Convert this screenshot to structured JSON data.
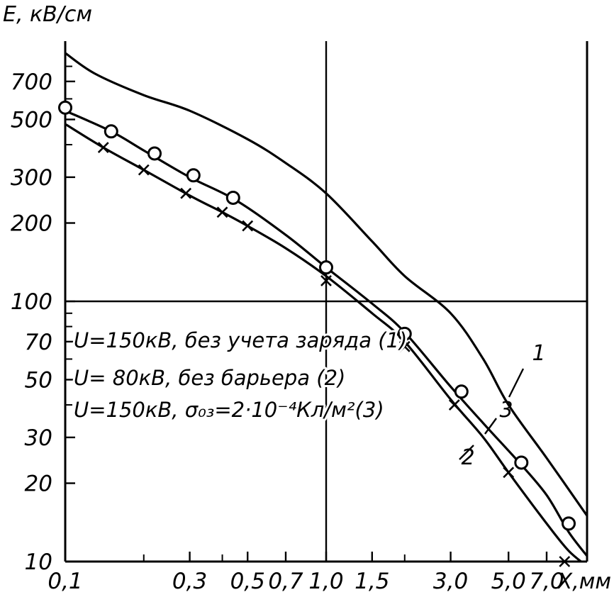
{
  "chart_data": {
    "type": "line",
    "ylabel": "E, кВ/см",
    "xlabel": "X,мм",
    "x_scale": "log",
    "y_scale": "log",
    "xlim": [
      0.1,
      10
    ],
    "ylim": [
      10,
      1000
    ],
    "x_ticks": [
      {
        "value": 0.1,
        "label": "0,1"
      },
      {
        "value": 0.3,
        "label": "0,3"
      },
      {
        "value": 0.5,
        "label": "0,5"
      },
      {
        "value": 0.7,
        "label": "0,7"
      },
      {
        "value": 1.0,
        "label": "1,0"
      },
      {
        "value": 1.5,
        "label": "1,5"
      },
      {
        "value": 3.0,
        "label": "3,0"
      },
      {
        "value": 5.0,
        "label": "5,0"
      },
      {
        "value": 7.0,
        "label": "7,0"
      }
    ],
    "x_minor_ticks": [
      0.2,
      0.4,
      2.0
    ],
    "y_ticks": [
      {
        "value": 10,
        "label": "10"
      },
      {
        "value": 20,
        "label": "20"
      },
      {
        "value": 30,
        "label": "30"
      },
      {
        "value": 50,
        "label": "50"
      },
      {
        "value": 70,
        "label": "70"
      },
      {
        "value": 100,
        "label": "100"
      },
      {
        "value": 200,
        "label": "200"
      },
      {
        "value": 300,
        "label": "300"
      },
      {
        "value": 500,
        "label": "500"
      },
      {
        "value": 700,
        "label": "700"
      }
    ],
    "y_minor_ticks": [
      40,
      60,
      80,
      90,
      400,
      600,
      800
    ],
    "grid_lines": {
      "x": [
        1.0
      ],
      "y": [
        100
      ]
    },
    "series": [
      {
        "id": "1",
        "marker": "none",
        "x": [
          0.1,
          0.13,
          0.2,
          0.3,
          0.5,
          0.7,
          1.0,
          1.5,
          2.0,
          3.0,
          4.0,
          5.0,
          7.0,
          10.0
        ],
        "y": [
          900,
          750,
          620,
          540,
          420,
          340,
          260,
          170,
          125,
          90,
          60,
          40,
          25,
          15
        ]
      },
      {
        "id": "2",
        "marker": "x",
        "x": [
          0.1,
          0.14,
          0.2,
          0.3,
          0.4,
          0.5,
          0.7,
          1.0,
          1.5,
          2.0,
          3.0,
          4.0,
          5.0,
          7.0,
          8.5,
          10.0
        ],
        "y": [
          480,
          390,
          320,
          255,
          220,
          195,
          160,
          125,
          90,
          70,
          42,
          30,
          22,
          14,
          11,
          9.6
        ],
        "points_x": [
          0.14,
          0.2,
          0.29,
          0.4,
          0.5,
          1.0,
          2.0,
          3.1,
          5.0,
          8.2
        ],
        "points_y": [
          390,
          320,
          260,
          220,
          195,
          120,
          67,
          40,
          22,
          10
        ]
      },
      {
        "id": "3",
        "marker": "o",
        "x": [
          0.1,
          0.15,
          0.2,
          0.3,
          0.45,
          0.7,
          1.0,
          1.5,
          2.0,
          3.0,
          4.0,
          5.5,
          7.0,
          8.5,
          10.0
        ],
        "y": [
          540,
          450,
          380,
          300,
          245,
          180,
          135,
          98,
          76,
          47,
          34,
          24,
          18,
          13,
          10.5
        ],
        "points_x": [
          0.1,
          0.15,
          0.22,
          0.31,
          0.44,
          1.0,
          2.0,
          3.3,
          5.6,
          8.5
        ],
        "points_y": [
          555,
          450,
          370,
          305,
          250,
          135,
          75,
          45,
          24,
          14
        ]
      }
    ],
    "legend": [
      "U=150кВ, без учета заряда (1)",
      "U= 80кВ, без барьера (2)",
      "U=150кВ, σ₀₃=2·10⁻⁴Кл/м²(3)"
    ],
    "curve_labels": [
      {
        "text": "1",
        "x": 6.5,
        "y": 56
      },
      {
        "text": "3",
        "x": 5.2,
        "y": 32
      },
      {
        "text": "2",
        "x": 4.3,
        "y": 22
      }
    ]
  }
}
